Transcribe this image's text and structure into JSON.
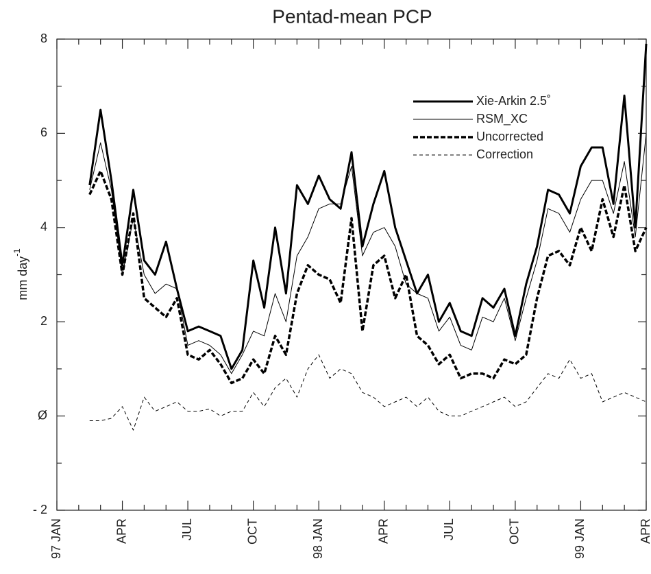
{
  "chart_data": {
    "type": "line",
    "title": "Pentad-mean PCP",
    "ylabel": "mm day",
    "ylabel_sup": "-1",
    "x": [
      1.5,
      2,
      2.5,
      3,
      3.5,
      4,
      4.5,
      5,
      5.5,
      6,
      6.5,
      7,
      7.5,
      8,
      8.5,
      9,
      9.5,
      10,
      10.5,
      11,
      11.5,
      12,
      12.5,
      13,
      13.5,
      14,
      14.5,
      15,
      15.5,
      16,
      16.5,
      17,
      17.5,
      18,
      18.5,
      19,
      19.5,
      20,
      20.5,
      21,
      21.5,
      22,
      22.5,
      23,
      23.5,
      24,
      24.5,
      25,
      25.5,
      26,
      26.5,
      27
    ],
    "xlim": [
      0,
      27
    ],
    "xticks": [
      {
        "value": 0,
        "label": "97 JAN"
      },
      {
        "value": 3,
        "label": "APR"
      },
      {
        "value": 6,
        "label": "JUL"
      },
      {
        "value": 9,
        "label": "OCT"
      },
      {
        "value": 12,
        "label": "98 JAN"
      },
      {
        "value": 15,
        "label": "APR"
      },
      {
        "value": 18,
        "label": "JUL"
      },
      {
        "value": 21,
        "label": "OCT"
      },
      {
        "value": 24,
        "label": "99 JAN"
      },
      {
        "value": 27,
        "label": "APR"
      }
    ],
    "xminorticks": [
      1,
      2,
      4,
      5,
      7,
      8,
      10,
      11,
      13,
      14,
      16,
      17,
      19,
      20,
      22,
      23,
      25,
      26
    ],
    "ylim": [
      -2,
      8
    ],
    "yticks": [
      {
        "value": -2,
        "label": "- 2"
      },
      {
        "value": 0,
        "label": "Ø"
      },
      2,
      4,
      6,
      8
    ],
    "yminorticks": [
      -1,
      1,
      3,
      5,
      7
    ],
    "grid": false,
    "legend": "top-right",
    "series": [
      {
        "name": "Xie-Arkin 2.5˚",
        "color": "#000000",
        "width": 3,
        "dash": "none",
        "values": [
          4.9,
          6.5,
          5.0,
          3.2,
          4.8,
          3.3,
          3.0,
          3.7,
          2.7,
          1.8,
          1.9,
          1.8,
          1.7,
          1.0,
          1.4,
          3.3,
          2.3,
          4.0,
          2.6,
          4.9,
          4.5,
          5.1,
          4.6,
          4.4,
          5.6,
          3.6,
          4.5,
          5.2,
          4.0,
          3.3,
          2.6,
          3.0,
          2.0,
          2.4,
          1.8,
          1.7,
          2.5,
          2.3,
          2.7,
          1.7,
          2.8,
          3.6,
          4.8,
          4.7,
          4.3,
          5.3,
          5.7,
          5.7,
          4.5,
          6.8,
          4.0,
          7.9
        ]
      },
      {
        "name": "RSM_XC",
        "color": "#000000",
        "width": 1,
        "dash": "none",
        "values": [
          4.8,
          5.8,
          4.8,
          3.0,
          4.2,
          3.0,
          2.6,
          2.8,
          2.7,
          1.5,
          1.6,
          1.5,
          1.3,
          0.9,
          1.3,
          1.8,
          1.7,
          2.6,
          2.0,
          3.4,
          3.8,
          4.4,
          4.5,
          4.5,
          5.3,
          3.4,
          3.9,
          4.0,
          3.6,
          2.8,
          2.6,
          2.5,
          1.8,
          2.1,
          1.5,
          1.4,
          2.1,
          2.0,
          2.5,
          1.6,
          2.5,
          3.3,
          4.4,
          4.3,
          3.9,
          4.6,
          5.0,
          5.0,
          4.3,
          5.4,
          3.8,
          6.0
        ]
      },
      {
        "name": "Uncorrected",
        "color": "#000000",
        "width": 3.5,
        "dash": "7,3",
        "values": [
          4.7,
          5.2,
          4.6,
          3.0,
          4.3,
          2.5,
          2.3,
          2.1,
          2.5,
          1.3,
          1.2,
          1.4,
          1.1,
          0.7,
          0.8,
          1.2,
          0.9,
          1.7,
          1.3,
          2.6,
          3.2,
          3.0,
          2.9,
          2.4,
          4.2,
          1.8,
          3.2,
          3.4,
          2.5,
          3.0,
          1.7,
          1.5,
          1.1,
          1.3,
          0.8,
          0.9,
          0.9,
          0.8,
          1.2,
          1.1,
          1.3,
          2.5,
          3.4,
          3.5,
          3.2,
          4.0,
          3.5,
          4.6,
          3.8,
          4.9,
          3.5,
          4.0
        ]
      },
      {
        "name": "Correction",
        "color": "#000000",
        "width": 1,
        "dash": "5,4",
        "values": [
          -0.1,
          -0.1,
          -0.05,
          0.2,
          -0.3,
          0.4,
          0.1,
          0.2,
          0.3,
          0.1,
          0.1,
          0.15,
          0.0,
          0.1,
          0.1,
          0.5,
          0.2,
          0.6,
          0.8,
          0.4,
          1.0,
          1.3,
          0.8,
          1.0,
          0.9,
          0.5,
          0.4,
          0.2,
          0.3,
          0.4,
          0.2,
          0.4,
          0.1,
          0.0,
          0.0,
          0.1,
          0.2,
          0.3,
          0.4,
          0.2,
          0.3,
          0.6,
          0.9,
          0.8,
          1.2,
          0.8,
          0.9,
          0.3,
          0.4,
          0.5,
          0.4,
          0.3
        ]
      }
    ]
  }
}
